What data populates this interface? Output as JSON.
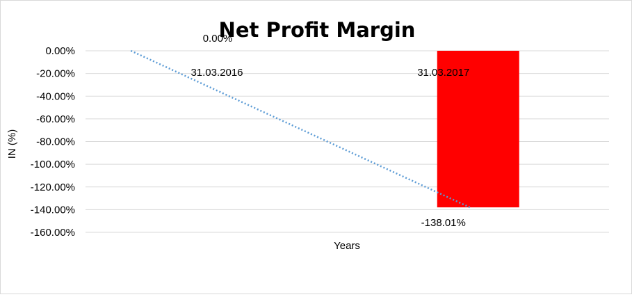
{
  "chart_data": {
    "type": "bar",
    "title": "Net Profit Margin",
    "xlabel": "Years",
    "ylabel": "IN (%)",
    "ylim": [
      -160,
      0
    ],
    "yticks": [
      "0.00%",
      "-20.00%",
      "-40.00%",
      "-60.00%",
      "-80.00%",
      "-100.00%",
      "-120.00%",
      "-140.00%",
      "-160.00%"
    ],
    "ytick_values": [
      0,
      -20,
      -40,
      -60,
      -80,
      -100,
      -120,
      -140,
      -160
    ],
    "grid": true,
    "legend": "none",
    "categories": [
      "31.03.2016",
      "31.03.2017"
    ],
    "series": [
      {
        "values": [
          0.0,
          -138.01
        ],
        "data_labels": [
          "0.00%",
          "-138.01%"
        ],
        "color": "#ff0000"
      }
    ],
    "trendline": {
      "style": "dotted",
      "color": "#5b9bd5",
      "from": [
        0,
        0
      ],
      "to": [
        1,
        -138.01
      ]
    }
  }
}
